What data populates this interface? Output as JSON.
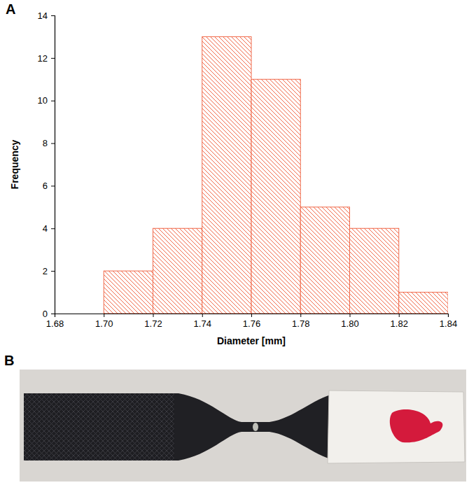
{
  "chart_data": {
    "type": "histogram",
    "panel_label": "A",
    "x_label": "Diameter [mm]",
    "y_label": "Frequency",
    "bins": [
      1.7,
      1.72,
      1.74,
      1.76,
      1.78,
      1.8,
      1.82,
      1.84
    ],
    "values": [
      2,
      4,
      13,
      11,
      5,
      4,
      1
    ],
    "color": "#f0694a",
    "xlim": [
      1.68,
      1.84
    ],
    "xticks": [
      1.68,
      {
        "value": 1.7,
        "label": "1.70"
      },
      1.72,
      1.74,
      1.76,
      1.78,
      {
        "value": 1.8,
        "label": "1.80"
      },
      1.82,
      1.84
    ],
    "ylim": [
      0,
      14
    ],
    "yticks": [
      0,
      2,
      4,
      6,
      8,
      10,
      12,
      14
    ],
    "grid": false
  },
  "photo": {
    "panel_label": "B"
  }
}
